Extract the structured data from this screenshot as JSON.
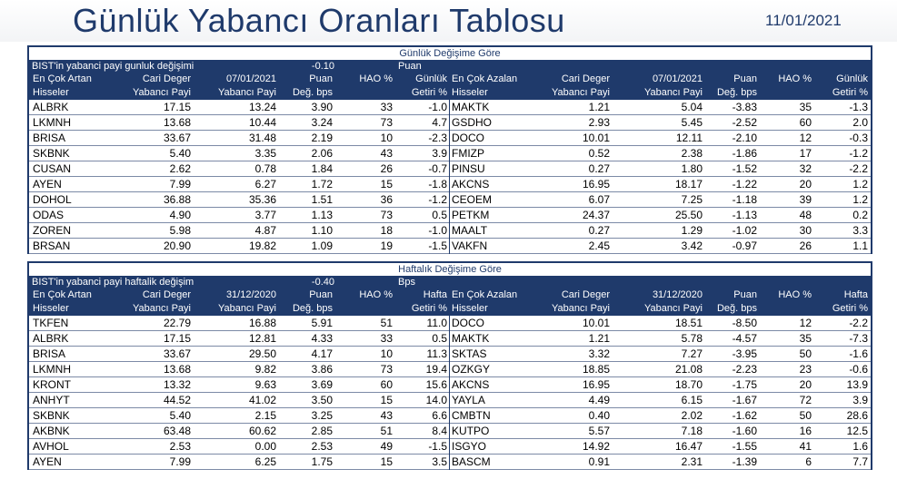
{
  "header": {
    "title": "Günlük Yabancı Oranları Tablosu",
    "date": "11/01/2021"
  },
  "daily": {
    "section_title": "Günlük Değişime Göre",
    "summary_label": "BIST'in yabanci payi gunluk değişimi",
    "summary_value": "-0.10",
    "summary_unit": "Puan",
    "left_headers": {
      "name": [
        "En Çok Artan",
        "Hisseler"
      ],
      "cur": [
        "Cari Deger",
        "Yabancı Payi"
      ],
      "ref": [
        "07/01/2021",
        "Yabancı Payi"
      ],
      "chg": [
        "Puan",
        "Değ. bps"
      ],
      "hao": [
        "HAO %",
        ""
      ],
      "ret": [
        "Günlük",
        "Getiri %"
      ]
    },
    "right_headers": {
      "name": [
        "En Çok Azalan",
        "Hisseler"
      ],
      "cur": [
        "Cari Deger",
        "Yabancı Payi"
      ],
      "ref": [
        "07/01/2021",
        "Yabancı Payi"
      ],
      "chg": [
        "Puan",
        "Değ. bps"
      ],
      "hao": [
        "HAO %",
        ""
      ],
      "ret": [
        "Günlük",
        "Getiri %"
      ]
    },
    "left_rows": [
      [
        "ALBRK",
        "17.15",
        "13.24",
        "3.90",
        "33",
        "-1.0"
      ],
      [
        "LKMNH",
        "13.68",
        "10.44",
        "3.24",
        "73",
        "4.7"
      ],
      [
        "BRISA",
        "33.67",
        "31.48",
        "2.19",
        "10",
        "-2.3"
      ],
      [
        "SKBNK",
        "5.40",
        "3.35",
        "2.06",
        "43",
        "3.9"
      ],
      [
        "CUSAN",
        "2.62",
        "0.78",
        "1.84",
        "26",
        "-0.7"
      ],
      [
        "AYEN",
        "7.99",
        "6.27",
        "1.72",
        "15",
        "-1.8"
      ],
      [
        "DOHOL",
        "36.88",
        "35.36",
        "1.51",
        "36",
        "-1.2"
      ],
      [
        "ODAS",
        "4.90",
        "3.77",
        "1.13",
        "73",
        "0.5"
      ],
      [
        "ZOREN",
        "5.98",
        "4.87",
        "1.10",
        "18",
        "-1.0"
      ],
      [
        "BRSAN",
        "20.90",
        "19.82",
        "1.09",
        "19",
        "-1.5"
      ]
    ],
    "right_rows": [
      [
        "MAKTK",
        "1.21",
        "5.04",
        "-3.83",
        "35",
        "-1.3"
      ],
      [
        "GSDHO",
        "2.93",
        "5.45",
        "-2.52",
        "60",
        "2.0"
      ],
      [
        "DOCO",
        "10.01",
        "12.11",
        "-2.10",
        "12",
        "-0.3"
      ],
      [
        "FMIZP",
        "0.52",
        "2.38",
        "-1.86",
        "17",
        "-1.2"
      ],
      [
        "PINSU",
        "0.27",
        "1.80",
        "-1.52",
        "32",
        "-2.2"
      ],
      [
        "AKCNS",
        "16.95",
        "18.17",
        "-1.22",
        "20",
        "1.2"
      ],
      [
        "CEOEM",
        "6.07",
        "7.25",
        "-1.18",
        "39",
        "1.2"
      ],
      [
        "PETKM",
        "24.37",
        "25.50",
        "-1.13",
        "48",
        "0.2"
      ],
      [
        "MAALT",
        "0.27",
        "1.29",
        "-1.02",
        "30",
        "3.3"
      ],
      [
        "VAKFN",
        "2.45",
        "3.42",
        "-0.97",
        "26",
        "1.1"
      ]
    ]
  },
  "weekly": {
    "section_title": "Haftalık Değişime Göre",
    "summary_label": "BIST'in yabanci payi haftalik değişim",
    "summary_value": "-0.40",
    "summary_unit": "Bps",
    "left_headers": {
      "name": [
        "En Çok Artan",
        "Hisseler"
      ],
      "cur": [
        "Cari Deger",
        "Yabancı Payi"
      ],
      "ref": [
        "31/12/2020",
        "Yabancı Payi"
      ],
      "chg": [
        "Puan",
        "Değ. bps"
      ],
      "hao": [
        "HAO %",
        ""
      ],
      "ret": [
        "Hafta",
        "Getiri %"
      ]
    },
    "right_headers": {
      "name": [
        "En Çok Azalan",
        "Hisseler"
      ],
      "cur": [
        "Cari Deger",
        "Yabancı Payi"
      ],
      "ref": [
        "31/12/2020",
        "Yabancı Payi"
      ],
      "chg": [
        "Puan",
        "Değ. bps"
      ],
      "hao": [
        "HAO %",
        ""
      ],
      "ret": [
        "Hafta",
        "Getiri %"
      ]
    },
    "left_rows": [
      [
        "TKFEN",
        "22.79",
        "16.88",
        "5.91",
        "51",
        "11.0"
      ],
      [
        "ALBRK",
        "17.15",
        "12.81",
        "4.33",
        "33",
        "0.5"
      ],
      [
        "BRISA",
        "33.67",
        "29.50",
        "4.17",
        "10",
        "11.3"
      ],
      [
        "LKMNH",
        "13.68",
        "9.82",
        "3.86",
        "73",
        "19.4"
      ],
      [
        "KRONT",
        "13.32",
        "9.63",
        "3.69",
        "60",
        "15.6"
      ],
      [
        "ANHYT",
        "44.52",
        "41.02",
        "3.50",
        "15",
        "14.0"
      ],
      [
        "SKBNK",
        "5.40",
        "2.15",
        "3.25",
        "43",
        "6.6"
      ],
      [
        "AKBNK",
        "63.48",
        "60.62",
        "2.85",
        "51",
        "8.4"
      ],
      [
        "AVHOL",
        "2.53",
        "0.00",
        "2.53",
        "49",
        "-1.5"
      ],
      [
        "AYEN",
        "7.99",
        "6.25",
        "1.75",
        "15",
        "3.5"
      ]
    ],
    "right_rows": [
      [
        "DOCO",
        "10.01",
        "18.51",
        "-8.50",
        "12",
        "-2.2"
      ],
      [
        "MAKTK",
        "1.21",
        "5.78",
        "-4.57",
        "35",
        "-7.3"
      ],
      [
        "SKTAS",
        "3.32",
        "7.27",
        "-3.95",
        "50",
        "-1.6"
      ],
      [
        "OZKGY",
        "18.85",
        "21.08",
        "-2.23",
        "23",
        "-0.6"
      ],
      [
        "AKCNS",
        "16.95",
        "18.70",
        "-1.75",
        "20",
        "13.9"
      ],
      [
        "YAYLA",
        "4.49",
        "6.15",
        "-1.67",
        "72",
        "3.9"
      ],
      [
        "CMBTN",
        "0.40",
        "2.02",
        "-1.62",
        "50",
        "28.6"
      ],
      [
        "KUTPO",
        "5.57",
        "7.18",
        "-1.60",
        "16",
        "12.5"
      ],
      [
        "ISGYO",
        "14.92",
        "16.47",
        "-1.55",
        "41",
        "1.6"
      ],
      [
        "BASCM",
        "0.91",
        "2.31",
        "-1.39",
        "6",
        "7.7"
      ]
    ]
  }
}
